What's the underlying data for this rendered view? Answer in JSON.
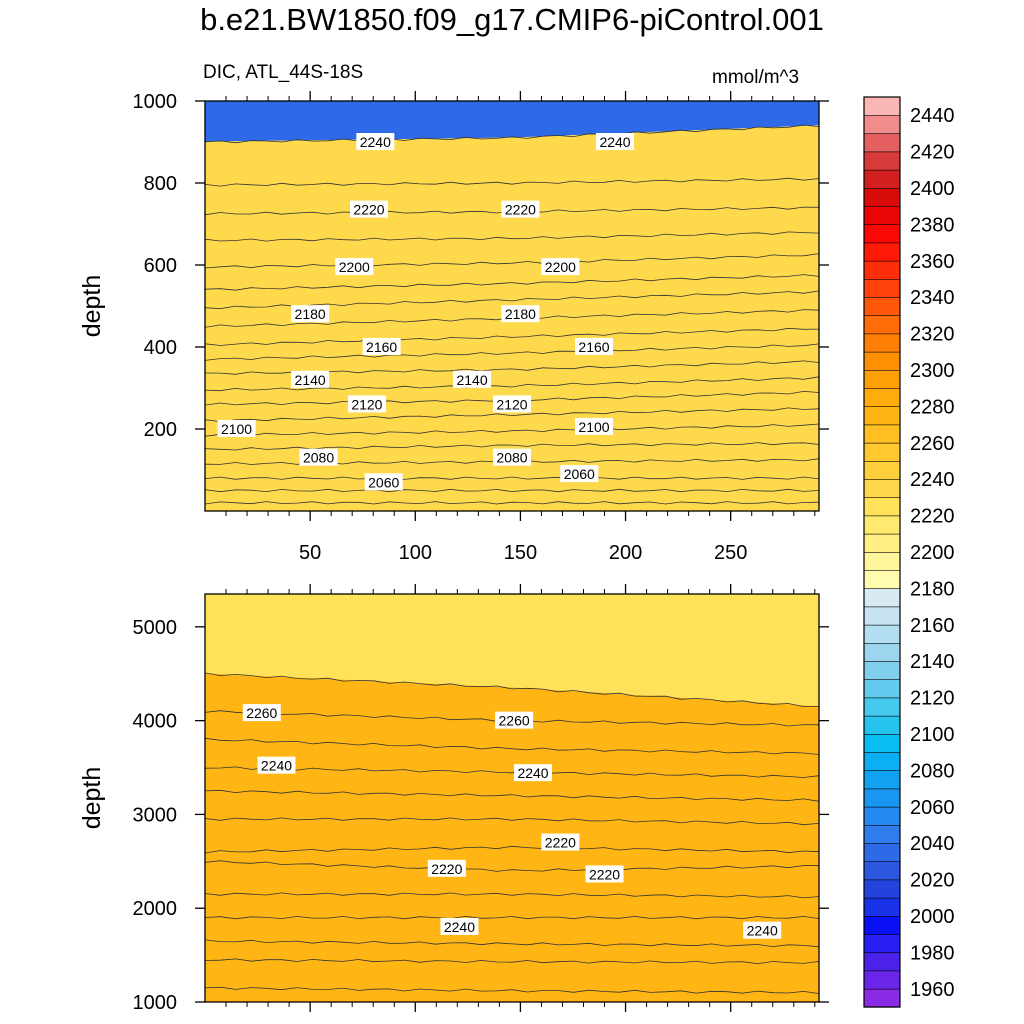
{
  "figure": {
    "title": "b.e21.BW1850.f09_g17.CMIP6-piControl.001",
    "variable_label": "DIC, ATL_44S-18S",
    "units_label": "mmol/m^3"
  },
  "chart_data": [
    {
      "type": "heatmap",
      "panel": "upper",
      "title": "b.e21.BW1850.f09_g17.CMIP6-piControl.001",
      "subtitle_left": "DIC, ATL_44S-18S",
      "subtitle_right": "mmol/m^3",
      "xlabel": "",
      "ylabel": "depth",
      "xlim": [
        0,
        292
      ],
      "ylim": [
        1000,
        0
      ],
      "x_ticks": [
        50,
        100,
        150,
        200,
        250
      ],
      "x_tick_labels": [
        "50",
        "100",
        "150",
        "200",
        "250"
      ],
      "y_ticks": [
        200,
        400,
        600,
        800,
        1000
      ],
      "y_tick_labels": [
        "200",
        "400",
        "600",
        "800",
        "1000"
      ],
      "contour_interval": 10,
      "contour_depths": {
        "x": [
          0,
          146,
          292
        ],
        "levels": [
          {
            "value": 2050,
            "depth": [
              20,
              20,
              20
            ]
          },
          {
            "value": 2060,
            "depth": [
              50,
              50,
              50
            ]
          },
          {
            "value": 2070,
            "depth": [
              80,
              80,
              80
            ]
          },
          {
            "value": 2080,
            "depth": [
              115,
              120,
              125
            ]
          },
          {
            "value": 2090,
            "depth": [
              150,
              160,
              165
            ]
          },
          {
            "value": 2100,
            "depth": [
              185,
              195,
              210
            ]
          },
          {
            "value": 2110,
            "depth": [
              220,
              235,
              250
            ]
          },
          {
            "value": 2120,
            "depth": [
              260,
              270,
              290
            ]
          },
          {
            "value": 2130,
            "depth": [
              295,
              305,
              325
            ]
          },
          {
            "value": 2140,
            "depth": [
              335,
              345,
              365
            ]
          },
          {
            "value": 2150,
            "depth": [
              370,
              385,
              405
            ]
          },
          {
            "value": 2160,
            "depth": [
              405,
              425,
              445
            ]
          },
          {
            "value": 2170,
            "depth": [
              450,
              470,
              490
            ]
          },
          {
            "value": 2180,
            "depth": [
              495,
              515,
              535
            ]
          },
          {
            "value": 2190,
            "depth": [
              540,
              555,
              575
            ]
          },
          {
            "value": 2200,
            "depth": [
              595,
              605,
              625
            ]
          },
          {
            "value": 2210,
            "depth": [
              660,
              665,
              680
            ]
          },
          {
            "value": 2220,
            "depth": [
              725,
              730,
              740
            ]
          },
          {
            "value": 2230,
            "depth": [
              795,
              800,
              810
            ]
          },
          {
            "value": 2240,
            "depth": [
              900,
              910,
              940
            ]
          }
        ]
      },
      "contour_labels": [
        {
          "text": "2060",
          "x": 85,
          "depth": 70
        },
        {
          "text": "2060",
          "x": 178,
          "depth": 90
        },
        {
          "text": "2080",
          "x": 54,
          "depth": 130
        },
        {
          "text": "2080",
          "x": 146,
          "depth": 130
        },
        {
          "text": "2100",
          "x": 15,
          "depth": 200
        },
        {
          "text": "2100",
          "x": 185,
          "depth": 205
        },
        {
          "text": "2120",
          "x": 77,
          "depth": 260
        },
        {
          "text": "2120",
          "x": 146,
          "depth": 260
        },
        {
          "text": "2140",
          "x": 50,
          "depth": 320
        },
        {
          "text": "2140",
          "x": 127,
          "depth": 320
        },
        {
          "text": "2160",
          "x": 84,
          "depth": 400
        },
        {
          "text": "2160",
          "x": 185,
          "depth": 400
        },
        {
          "text": "2180",
          "x": 50,
          "depth": 480
        },
        {
          "text": "2180",
          "x": 150,
          "depth": 480
        },
        {
          "text": "2200",
          "x": 71,
          "depth": 595
        },
        {
          "text": "2200",
          "x": 169,
          "depth": 595
        },
        {
          "text": "2220",
          "x": 78,
          "depth": 735
        },
        {
          "text": "2220",
          "x": 150,
          "depth": 735
        },
        {
          "text": "2240",
          "x": 81,
          "depth": 900
        },
        {
          "text": "2240",
          "x": 195,
          "depth": 900
        }
      ]
    },
    {
      "type": "heatmap",
      "panel": "lower",
      "xlabel": "",
      "ylabel": "depth",
      "xlim": [
        0,
        292
      ],
      "ylim": [
        5350,
        1000
      ],
      "y_ticks": [
        1000,
        2000,
        3000,
        4000,
        5000
      ],
      "y_tick_labels": [
        "1000",
        "2000",
        "3000",
        "4000",
        "5000"
      ],
      "contour_interval": 10,
      "contour_depths": {
        "x": [
          0,
          146,
          292
        ],
        "levels": [
          {
            "value": 2240,
            "depth": [
              1150,
              1120,
              1100
            ]
          },
          {
            "value": 2250,
            "depth": [
              1450,
              1430,
              1420
            ]
          },
          {
            "value": 2260,
            "depth": [
              1650,
              1620,
              1600
            ]
          },
          {
            "value": 2240,
            "depth": [
              1900,
              1900,
              1900
            ]
          },
          {
            "value": 2230,
            "depth": [
              2150,
              2150,
              2120
            ]
          },
          {
            "value": 2220,
            "depth": [
              2500,
              2400,
              2450
            ]
          },
          {
            "value": 2220,
            "depth": [
              2600,
              2650,
              2600
            ]
          },
          {
            "value": 2230,
            "depth": [
              2950,
              2950,
              2900
            ]
          },
          {
            "value": 2240,
            "depth": [
              3250,
              3200,
              3150
            ]
          },
          {
            "value": 2250,
            "depth": [
              3500,
              3450,
              3400
            ]
          },
          {
            "value": 2260,
            "depth": [
              3800,
              3700,
              3650
            ]
          },
          {
            "value": 2270,
            "depth": [
              4100,
              4000,
              3950
            ]
          },
          {
            "value": 2280,
            "depth": [
              4500,
              4350,
              4150
            ]
          }
        ]
      },
      "contour_labels": [
        {
          "text": "2240",
          "x": 121,
          "depth": 1800
        },
        {
          "text": "2240",
          "x": 265,
          "depth": 1760
        },
        {
          "text": "2220",
          "x": 115,
          "depth": 2420
        },
        {
          "text": "2220",
          "x": 190,
          "depth": 2360
        },
        {
          "text": "2220",
          "x": 169,
          "depth": 2700
        },
        {
          "text": "2240",
          "x": 34,
          "depth": 3520
        },
        {
          "text": "2240",
          "x": 156,
          "depth": 3440
        },
        {
          "text": "2260",
          "x": 27,
          "depth": 4080
        },
        {
          "text": "2260",
          "x": 147,
          "depth": 4000
        }
      ]
    }
  ],
  "colorbar": {
    "levels": [
      1960,
      1970,
      1980,
      1990,
      2000,
      2010,
      2020,
      2030,
      2040,
      2050,
      2060,
      2070,
      2080,
      2090,
      2100,
      2110,
      2120,
      2130,
      2140,
      2150,
      2160,
      2170,
      2180,
      2190,
      2200,
      2210,
      2220,
      2230,
      2240,
      2250,
      2260,
      2270,
      2280,
      2290,
      2300,
      2310,
      2320,
      2330,
      2340,
      2350,
      2360,
      2370,
      2380,
      2390,
      2400,
      2410,
      2420,
      2430,
      2440,
      2450
    ],
    "labels": [
      "1960",
      "1980",
      "2000",
      "2020",
      "2040",
      "2060",
      "2080",
      "2100",
      "2120",
      "2140",
      "2160",
      "2180",
      "2200",
      "2220",
      "2240",
      "2260",
      "2280",
      "2300",
      "2320",
      "2340",
      "2360",
      "2380",
      "2400",
      "2420",
      "2440"
    ],
    "colors": [
      "#8a29e6",
      "#6a25e8",
      "#4c22eb",
      "#2a1ff2",
      "#0a10f5",
      "#1a33e8",
      "#2443dc",
      "#2c58e0",
      "#2e6ae8",
      "#2f7ded",
      "#2289ee",
      "#1896f0",
      "#11a3f2",
      "#0bb0f4",
      "#08bdf2",
      "#24c4ef",
      "#45c9ef",
      "#63cbed",
      "#80cfec",
      "#9cd6ee",
      "#b3ddf0",
      "#c7e3f2",
      "#d8ebf5",
      "#fffcb0",
      "#fff59a",
      "#ffef84",
      "#ffe96e",
      "#ffe15a",
      "#ffd94c",
      "#ffd03c",
      "#ffc82e",
      "#ffbf22",
      "#ffb615",
      "#ffac0c",
      "#ff9f06",
      "#ff9004",
      "#ff7f06",
      "#ff6c08",
      "#ff580a",
      "#ff430b",
      "#ff2e0a",
      "#ff1a08",
      "#fb0806",
      "#ea0505",
      "#d80b0b",
      "#d21f1f",
      "#d83a3a",
      "#e46060",
      "#f08c8c",
      "#fbb6b6"
    ]
  },
  "axes": {
    "depth_label": "depth"
  }
}
